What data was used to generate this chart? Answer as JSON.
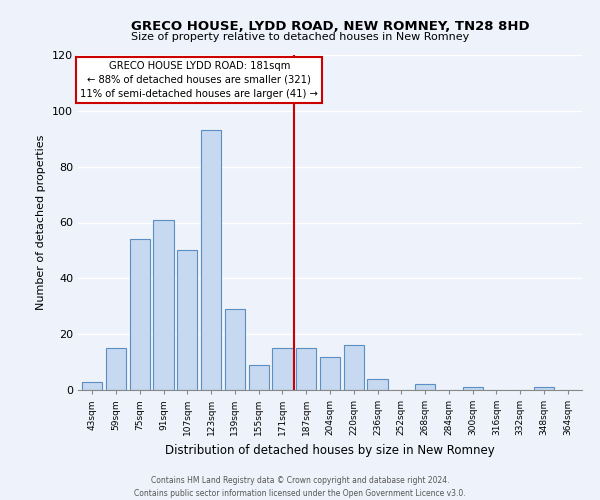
{
  "title": "GRECO HOUSE, LYDD ROAD, NEW ROMNEY, TN28 8HD",
  "subtitle": "Size of property relative to detached houses in New Romney",
  "xlabel": "Distribution of detached houses by size in New Romney",
  "ylabel": "Number of detached properties",
  "bar_labels": [
    "43sqm",
    "59sqm",
    "75sqm",
    "91sqm",
    "107sqm",
    "123sqm",
    "139sqm",
    "155sqm",
    "171sqm",
    "187sqm",
    "204sqm",
    "220sqm",
    "236sqm",
    "252sqm",
    "268sqm",
    "284sqm",
    "300sqm",
    "316sqm",
    "332sqm",
    "348sqm",
    "364sqm"
  ],
  "bar_values": [
    3,
    15,
    54,
    61,
    50,
    93,
    29,
    9,
    15,
    15,
    12,
    16,
    4,
    0,
    2,
    0,
    1,
    0,
    0,
    1,
    0
  ],
  "bar_color": "#c7d9f0",
  "bar_edge_color": "#5a8fc3",
  "annotation_title": "GRECO HOUSE LYDD ROAD: 181sqm",
  "annotation_line1": "← 88% of detached houses are smaller (321)",
  "annotation_line2": "11% of semi-detached houses are larger (41) →",
  "annotation_box_color": "#ffffff",
  "annotation_box_edge_color": "#cc0000",
  "vline_color": "#cc0000",
  "ylim": [
    0,
    120
  ],
  "yticks": [
    0,
    20,
    40,
    60,
    80,
    100,
    120
  ],
  "footer_line1": "Contains HM Land Registry data © Crown copyright and database right 2024.",
  "footer_line2": "Contains public sector information licensed under the Open Government Licence v3.0.",
  "bg_color": "#eef2fa"
}
